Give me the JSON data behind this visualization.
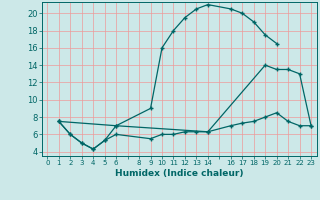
{
  "xlabel": "Humidex (Indice chaleur)",
  "bg_color": "#cce8e8",
  "grid_color": "#ee9999",
  "line_color": "#006666",
  "ylim": [
    4,
    21
  ],
  "xlim": [
    -0.5,
    23.5
  ],
  "yticks": [
    4,
    6,
    8,
    10,
    12,
    14,
    16,
    18,
    20
  ],
  "xticks": [
    0,
    1,
    2,
    3,
    4,
    5,
    6,
    8,
    9,
    10,
    11,
    12,
    13,
    14,
    16,
    17,
    18,
    19,
    20,
    21,
    22,
    23
  ],
  "curve1_x": [
    1,
    2,
    3,
    4,
    5,
    6,
    9,
    10,
    11,
    12,
    13,
    14,
    16,
    17,
    18,
    19,
    20
  ],
  "curve1_y": [
    7.5,
    6,
    5,
    4.3,
    5.3,
    7,
    9,
    16,
    18,
    19.5,
    20.5,
    21,
    20.5,
    20,
    19,
    17.5,
    16.5
  ],
  "curve2_x": [
    1,
    2,
    3,
    4,
    5,
    6,
    9,
    10,
    11,
    12,
    13,
    14,
    16,
    17,
    18,
    19,
    20,
    21,
    22,
    23
  ],
  "curve2_y": [
    7.5,
    6,
    5,
    4.3,
    5.3,
    6,
    5.5,
    6,
    6,
    6.3,
    6.3,
    6.3,
    7,
    7.3,
    7.5,
    8,
    8.5,
    7.5,
    7,
    7
  ],
  "curve3_x": [
    1,
    6,
    14,
    19,
    20,
    21,
    22,
    23
  ],
  "curve3_y": [
    7.5,
    7,
    6.3,
    14,
    13.5,
    13.5,
    13,
    7
  ]
}
